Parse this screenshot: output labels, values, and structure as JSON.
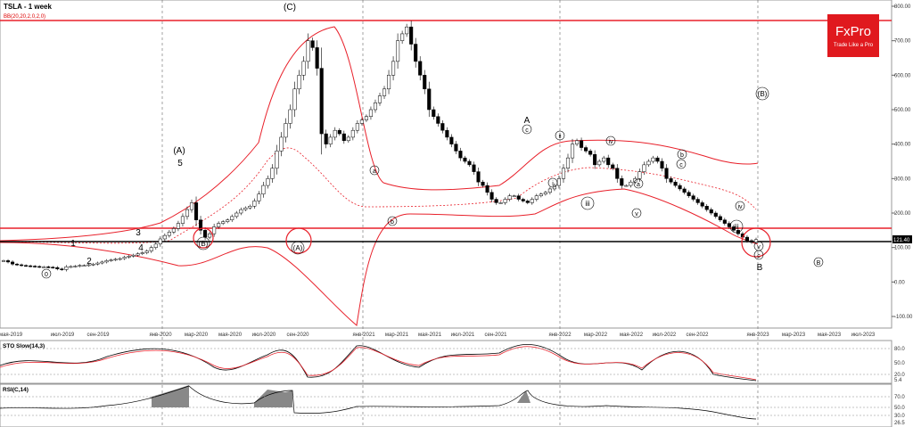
{
  "header": {
    "symbol": "TSLA - 1 week",
    "indicator": "BB(20,20,2,0,2,0)"
  },
  "logo": {
    "brand": "FxPro",
    "tagline": "Trade Like a Pro",
    "color": "#e0191e"
  },
  "colors": {
    "up": "#ffffff",
    "down": "#000000",
    "bb": "#e8202a",
    "level": "#e8202a",
    "support": "#000000",
    "grid": "#888888"
  },
  "chart_data": {
    "type": "candlestick",
    "title": "TSLA - 1 week",
    "y_ticks": [
      "800.00",
      "700.00",
      "600.00",
      "500.00",
      "400.00",
      "300.00",
      "200.00",
      "100.00",
      "0.00",
      "-100.00"
    ],
    "y_range": [
      -130,
      810
    ],
    "current_price": "121.40",
    "levels": {
      "resistance_top": 751,
      "resistance_low": 153,
      "support": 115
    },
    "x_labels": [
      "мая-2019",
      "июл-2019",
      "сен-2019",
      "янв-2020",
      "мар-2020",
      "мая-2020",
      "июл-2020",
      "сен-2020",
      "янв-2021",
      "мар-2021",
      "мая-2021",
      "июл-2021",
      "сен-2021",
      "янв-2022",
      "мар-2022",
      "мая-2022",
      "июл-2022",
      "сен-2022",
      "янв-2023",
      "мар-2023",
      "мая-2023",
      "июл-2023"
    ],
    "closes": [
      62,
      58,
      52,
      50,
      48,
      47,
      46,
      45,
      44,
      44,
      43,
      42,
      38,
      36,
      44,
      45,
      46,
      48,
      48,
      50,
      52,
      55,
      58,
      62,
      64,
      66,
      68,
      72,
      75,
      78,
      82,
      85,
      90,
      100,
      110,
      125,
      135,
      145,
      155,
      170,
      190,
      210,
      230,
      180,
      150,
      130,
      140,
      160,
      170,
      175,
      180,
      190,
      200,
      210,
      215,
      220,
      235,
      255,
      280,
      300,
      330,
      380,
      420,
      460,
      500,
      560,
      600,
      640,
      700,
      680,
      620,
      430,
      400,
      420,
      440,
      430,
      410,
      420,
      440,
      460,
      470,
      480,
      500,
      520,
      540,
      560,
      600,
      640,
      700,
      720,
      740,
      690,
      640,
      600,
      560,
      500,
      480,
      460,
      440,
      420,
      400,
      380,
      360,
      350,
      340,
      320,
      290,
      280,
      260,
      240,
      230,
      230,
      240,
      250,
      250,
      240,
      235,
      230,
      240,
      250,
      255,
      260,
      270,
      280,
      300,
      330,
      360,
      400,
      410,
      390,
      380,
      370,
      340,
      350,
      360,
      340,
      330,
      300,
      280,
      280,
      290,
      300,
      320,
      340,
      350,
      360,
      350,
      330,
      300,
      290,
      280,
      270,
      260,
      250,
      240,
      230,
      220,
      210,
      200,
      190,
      180,
      170,
      160,
      150,
      140,
      130,
      120,
      115,
      123
    ],
    "wave_labels": [
      {
        "text": "0",
        "circled": true
      },
      {
        "text": "1"
      },
      {
        "text": "2"
      },
      {
        "text": "3"
      },
      {
        "text": "4"
      },
      {
        "text": "(A)"
      },
      {
        "text": "5"
      },
      {
        "text": "(B)",
        "circled": true
      },
      {
        "text": "(C)"
      },
      {
        "text": "(A)",
        "circled": true
      },
      {
        "text": "a",
        "circled": true
      },
      {
        "text": "b",
        "circled": true
      },
      {
        "text": "c",
        "circled": true
      },
      {
        "text": "A"
      },
      {
        "text": "ii",
        "circled": true
      },
      {
        "text": "i",
        "circled": true
      },
      {
        "text": "iii",
        "circled": true
      },
      {
        "text": "iv",
        "circled": true
      },
      {
        "text": "b",
        "circled": true
      },
      {
        "text": "c",
        "circled": true
      },
      {
        "text": "a",
        "circled": true
      },
      {
        "text": "v",
        "circled": true
      },
      {
        "text": "iii",
        "circled": true
      },
      {
        "text": "iv",
        "circled": true
      },
      {
        "text": "v",
        "circled": true
      },
      {
        "text": "c",
        "circled": true
      },
      {
        "text": "B"
      },
      {
        "text": "(B)",
        "circled": true
      },
      {
        "text": "B",
        "circled": true
      }
    ],
    "sto": {
      "title": "STO Slow(14,3)",
      "ticks": [
        "80.0",
        "50.0",
        "20.0",
        "5.4"
      ]
    },
    "rsi": {
      "title": "RSI(C,14)",
      "ticks": [
        "70.0",
        "50.0",
        "30.0",
        "26.5"
      ]
    }
  }
}
